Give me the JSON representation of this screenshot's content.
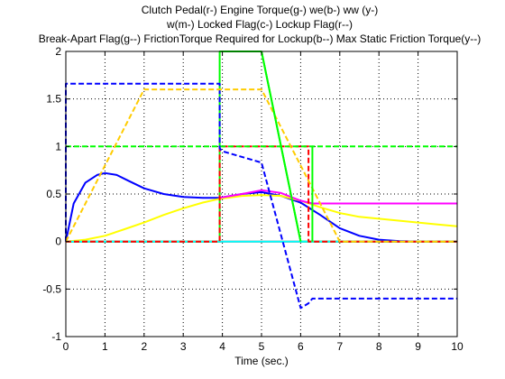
{
  "chart_data": {
    "type": "line",
    "title_lines": [
      "Clutch Pedal(r-) Engine Torque(g-) we(b-) ww (y-)",
      "w(m-) Locked Flag(c-) Lockup Flag(r--)",
      "Break-Apart Flag(g--) FrictionTorque Required for Lockup(b--) Max Static Friction Torque(y--)"
    ],
    "xlabel": "Time (sec.)",
    "ylabel": "",
    "xlim": [
      0,
      10
    ],
    "ylim": [
      -1,
      2
    ],
    "xticks": [
      0,
      1,
      2,
      3,
      4,
      5,
      6,
      7,
      8,
      9,
      10
    ],
    "yticks": [
      -1,
      -0.5,
      0,
      0.5,
      1,
      1.5,
      2
    ],
    "xtick_labels": [
      "0",
      "1",
      "2",
      "3",
      "4",
      "5",
      "6",
      "7",
      "8",
      "9",
      "10"
    ],
    "ytick_labels": [
      "-1",
      "-0.5",
      "0",
      "0.5",
      "1",
      "1.5",
      "2"
    ],
    "grid": true,
    "series": [
      {
        "key": "clutch-pedal",
        "color": "#ff0000",
        "dash": "solid",
        "x": [
          0,
          10
        ],
        "y": [
          0,
          0
        ]
      },
      {
        "key": "engine-torque",
        "color": "#00ff00",
        "dash": "solid",
        "x": [
          0,
          3.93,
          3.93,
          5.0,
          6.0,
          6.0,
          10
        ],
        "y": [
          0,
          0,
          2,
          2,
          0,
          0,
          0
        ]
      },
      {
        "key": "we",
        "color": "#0000ff",
        "dash": "solid",
        "x": [
          0,
          0.2,
          0.5,
          0.8,
          1.0,
          1.3,
          1.6,
          2.0,
          2.5,
          3.0,
          3.5,
          3.93,
          4.5,
          5.0,
          5.5,
          6.0,
          6.5,
          7.0,
          7.5,
          8.0,
          8.5,
          9.0
        ],
        "y": [
          0,
          0.4,
          0.62,
          0.7,
          0.72,
          0.7,
          0.64,
          0.56,
          0.5,
          0.47,
          0.46,
          0.46,
          0.5,
          0.52,
          0.48,
          0.41,
          0.28,
          0.14,
          0.06,
          0.02,
          0.005,
          0
        ]
      },
      {
        "key": "ww",
        "color": "#ffff00",
        "dash": "solid",
        "x": [
          0,
          0.5,
          1.0,
          1.5,
          2.0,
          2.5,
          3.0,
          3.5,
          3.93,
          4.5,
          5.0,
          5.5,
          6.0,
          6.5,
          7.0,
          7.5,
          8.0,
          8.5,
          9.0,
          9.5,
          10.0
        ],
        "y": [
          0,
          0.02,
          0.06,
          0.13,
          0.2,
          0.28,
          0.35,
          0.41,
          0.45,
          0.48,
          0.49,
          0.48,
          0.43,
          0.36,
          0.3,
          0.26,
          0.24,
          0.22,
          0.2,
          0.18,
          0.16
        ]
      },
      {
        "key": "w",
        "color": "#ff00ff",
        "dash": "solid",
        "x": [
          3.93,
          4.5,
          5.0,
          5.5,
          6.0,
          6.3,
          7.0,
          8.0,
          9.0,
          10.0
        ],
        "y": [
          0.46,
          0.5,
          0.54,
          0.51,
          0.43,
          0.4,
          0.4,
          0.4,
          0.4,
          0.4
        ]
      },
      {
        "key": "locked-flag",
        "color": "#00ffff",
        "dash": "solid",
        "x": [
          0,
          10
        ],
        "y": [
          0,
          0
        ]
      },
      {
        "key": "lockup-flag",
        "color": "#ff0000",
        "dash": "dash",
        "x": [
          0,
          3.93,
          3.93,
          6.2,
          6.2,
          10
        ],
        "y": [
          0,
          0,
          1,
          1,
          0,
          0
        ]
      },
      {
        "key": "break-apart-flag",
        "color": "#00ff00",
        "dash": "dash",
        "x": [
          0,
          10
        ],
        "y": [
          1,
          1
        ]
      },
      {
        "key": "friction-torque-required",
        "color": "#0000ff",
        "dash": "dash",
        "x": [
          0,
          0,
          3.93,
          3.93,
          4.0,
          5.0,
          6.0,
          6.2,
          6.3,
          7.0,
          8.0,
          9.0,
          10.0
        ],
        "y": [
          0,
          1.66,
          1.66,
          0.98,
          0.95,
          0.83,
          -0.7,
          -0.65,
          -0.6,
          -0.6,
          -0.6,
          -0.6,
          -0.6
        ]
      },
      {
        "key": "max-static-friction",
        "color": "#ffcc00",
        "dash": "dash",
        "x": [
          0,
          2.0,
          5.0,
          6.0,
          7.0,
          10.0
        ],
        "y": [
          0,
          1.6,
          1.6,
          0.8,
          0,
          0
        ]
      },
      {
        "key": "lockup-edge-green",
        "color": "#00ff00",
        "dash": "solid",
        "x": [
          6.3,
          6.3,
          6.3
        ],
        "y": [
          0,
          1,
          0.38
        ]
      },
      {
        "key": "green-ramp-down",
        "color": "#00ff00",
        "dash": "solid",
        "x": [
          5.0,
          6.0
        ],
        "y": [
          2.0,
          0.0
        ]
      }
    ]
  }
}
